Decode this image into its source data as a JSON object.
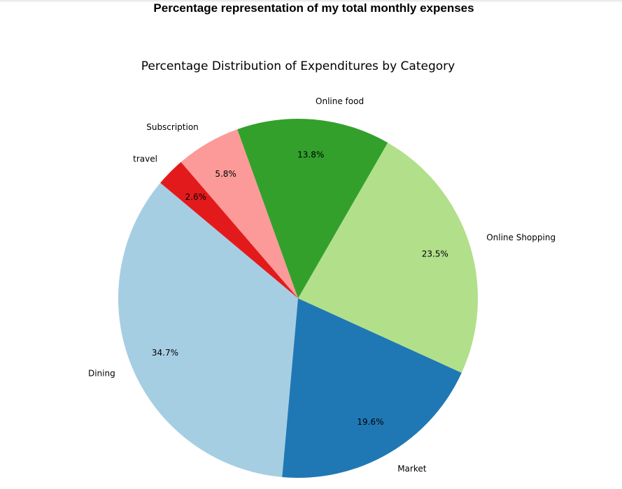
{
  "page": {
    "heading": "Percentage representation of my total monthly expenses"
  },
  "chart_data": {
    "type": "pie",
    "title": "Percentage Distribution of Expenditures by Category",
    "categories": [
      "Dining",
      "Market",
      "Online Shopping",
      "Online food",
      "Subscription",
      "travel"
    ],
    "values": [
      34.7,
      19.6,
      23.5,
      13.8,
      5.8,
      2.6
    ],
    "value_labels": [
      "34.7%",
      "19.6%",
      "23.5%",
      "13.8%",
      "5.8%",
      "2.6%"
    ],
    "colors": [
      "#a6cee3",
      "#1f78b4",
      "#b2df8a",
      "#33a02c",
      "#fb9a99",
      "#e31a1c"
    ],
    "start_angle_deg": 140,
    "direction": "counterclockwise",
    "legend": "none"
  }
}
